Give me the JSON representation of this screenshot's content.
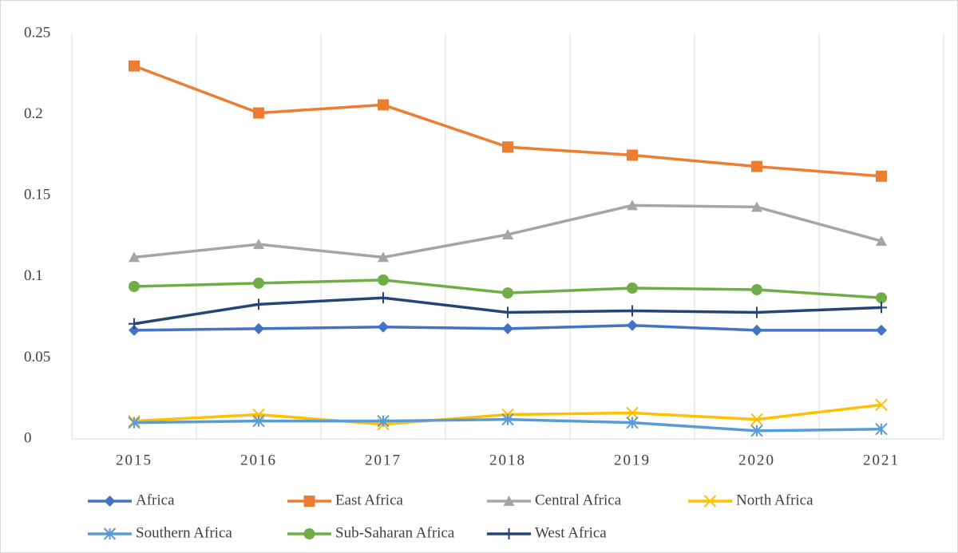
{
  "chart_data": {
    "type": "line",
    "categories": [
      "2015",
      "2016",
      "2017",
      "2018",
      "2019",
      "2020",
      "2021"
    ],
    "series": [
      {
        "name": "Africa",
        "color": "#4472c4",
        "marker": "diamond",
        "values": [
          0.067,
          0.068,
          0.069,
          0.068,
          0.07,
          0.067,
          0.067
        ]
      },
      {
        "name": "East Africa",
        "color": "#ed7d31",
        "marker": "square",
        "values": [
          0.23,
          0.201,
          0.206,
          0.18,
          0.175,
          0.168,
          0.162
        ]
      },
      {
        "name": "Central Africa",
        "color": "#a5a5a5",
        "marker": "triangle",
        "values": [
          0.112,
          0.12,
          0.112,
          0.126,
          0.144,
          0.143,
          0.122
        ]
      },
      {
        "name": "North Africa",
        "color": "#ffc000",
        "marker": "x",
        "values": [
          0.011,
          0.015,
          0.009,
          0.015,
          0.016,
          0.012,
          0.021
        ]
      },
      {
        "name": "Southern Africa",
        "color": "#5b9bd5",
        "marker": "asterisk",
        "values": [
          0.01,
          0.011,
          0.011,
          0.012,
          0.01,
          0.005,
          0.006
        ]
      },
      {
        "name": "Sub-Saharan Africa",
        "color": "#70ad47",
        "marker": "circle",
        "values": [
          0.094,
          0.096,
          0.098,
          0.09,
          0.093,
          0.092,
          0.087
        ]
      },
      {
        "name": "West Africa",
        "color": "#264478",
        "marker": "plus",
        "values": [
          0.071,
          0.083,
          0.087,
          0.078,
          0.079,
          0.078,
          0.081
        ]
      }
    ],
    "ylim": [
      0,
      0.25
    ],
    "yticks": [
      0,
      0.05,
      0.1,
      0.15,
      0.2,
      0.25
    ],
    "grid": "x",
    "legend": "bottom"
  }
}
